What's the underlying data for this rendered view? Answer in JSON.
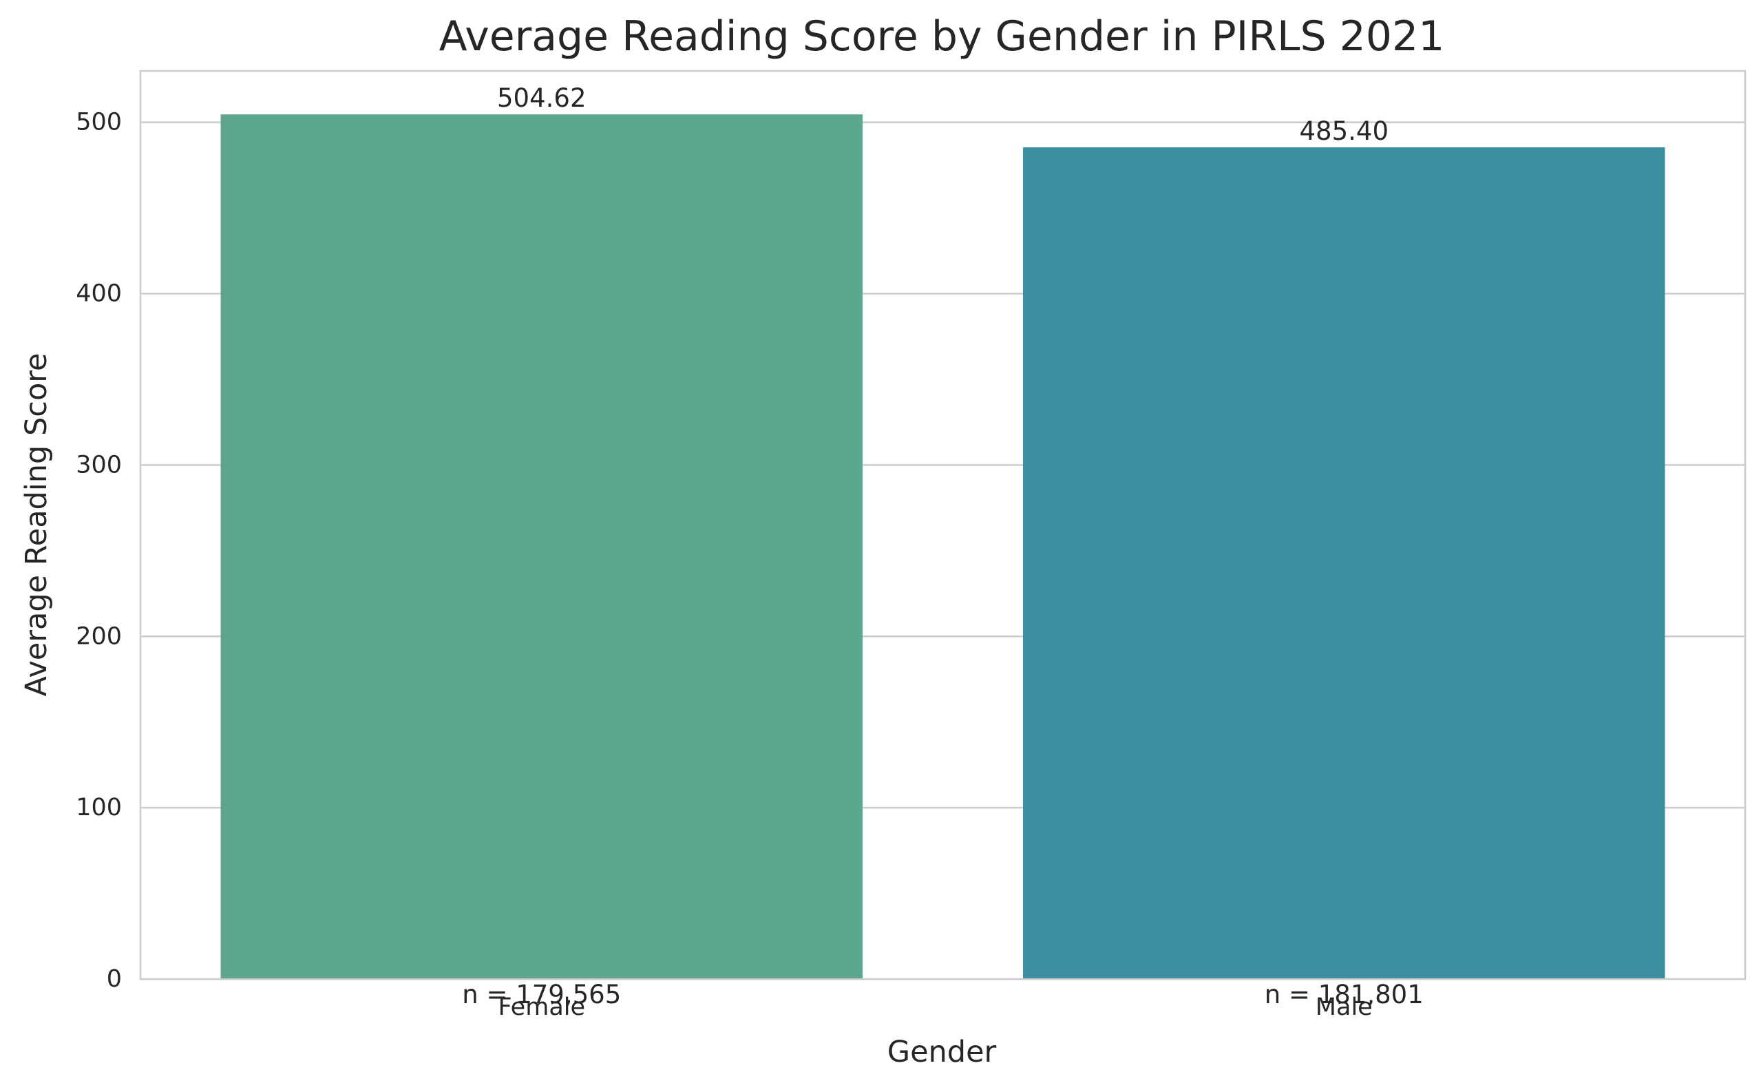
{
  "chart_data": {
    "type": "bar",
    "title": "Average Reading Score by Gender in PIRLS 2021",
    "xlabel": "Gender",
    "ylabel": "Average Reading Score",
    "categories": [
      "Female",
      "Male"
    ],
    "values": [
      504.62,
      485.4
    ],
    "value_labels": [
      "504.62",
      "485.40"
    ],
    "count_labels": [
      "n = 179,565",
      "n = 181,801"
    ],
    "colors": [
      "#5ca58e",
      "#3e8ea2"
    ],
    "ylim": [
      0,
      530
    ],
    "yticks": [
      0,
      100,
      200,
      300,
      400,
      500
    ],
    "grid": true,
    "grid_axis": "y",
    "legend": "none"
  }
}
